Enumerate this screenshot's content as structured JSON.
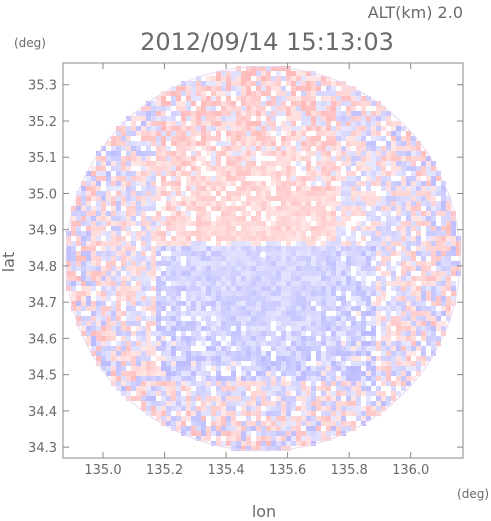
{
  "chart_data": {
    "type": "heatmap",
    "title": "2012/09/14 15:13:03",
    "altitude_label": "ALT(km) 2.0",
    "xlabel": "lon",
    "ylabel": "lat",
    "x_unit": "(deg)",
    "y_unit": "(deg)",
    "xlim": [
      134.87,
      136.17
    ],
    "ylim": [
      34.27,
      35.36
    ],
    "x_ticks": [
      "135.0",
      "135.2",
      "135.4",
      "135.6",
      "135.8",
      "136.0"
    ],
    "y_ticks": [
      "34.3",
      "34.4",
      "34.5",
      "34.6",
      "34.7",
      "34.8",
      "34.9",
      "35.0",
      "35.1",
      "35.2",
      "35.3"
    ],
    "x_tick_values": [
      135.0,
      135.2,
      135.4,
      135.6,
      135.8,
      136.0
    ],
    "y_tick_values": [
      34.3,
      34.4,
      34.5,
      34.6,
      34.7,
      34.8,
      34.9,
      35.0,
      35.1,
      35.2,
      35.3
    ],
    "radar_center": {
      "lon": 135.52,
      "lat": 34.82
    },
    "radar_range_lon": 0.64,
    "radar_range_lat": 0.53,
    "colors": {
      "positive": "#ffb0b0",
      "negative": "#b0b0ff",
      "zero": "#ffffff",
      "frame": "#888888"
    }
  }
}
